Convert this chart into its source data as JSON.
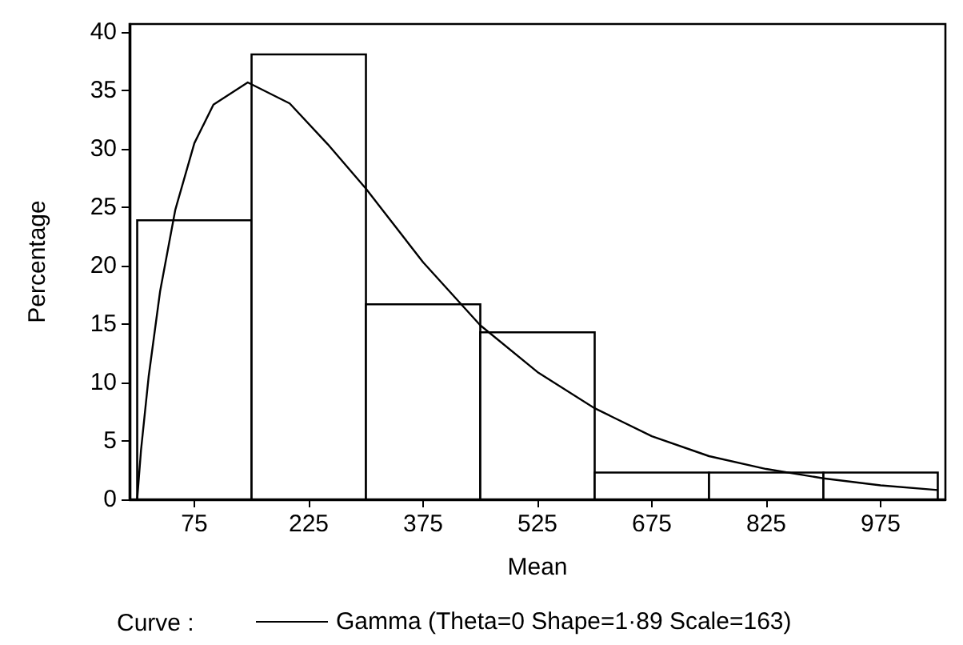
{
  "chart_data": {
    "type": "histogram",
    "xlabel": "Mean",
    "ylabel": "Percentage",
    "legend_title": "Curve :",
    "bins": [
      0,
      150,
      300,
      450,
      600,
      750,
      900,
      1050
    ],
    "values": [
      23.9,
      38.1,
      16.7,
      14.3,
      2.3,
      2.3,
      2.3
    ],
    "color": "#ffffff",
    "series": [
      {
        "type": "line",
        "name": "Gamma (Theta=0 Shape=1·89 Scale=163)",
        "color": "#000000",
        "line_style": "solid",
        "marker": "none",
        "x": [
          0,
          5,
          15,
          30,
          50,
          75,
          100,
          145,
          200,
          250,
          300,
          375,
          450,
          525,
          600,
          675,
          750,
          825,
          900,
          975,
          1050
        ],
        "values": [
          0,
          4.2,
          10.5,
          17.8,
          24.8,
          30.5,
          33.8,
          35.7,
          33.9,
          30.4,
          26.6,
          20.3,
          14.9,
          10.9,
          7.8,
          5.4,
          3.7,
          2.6,
          1.8,
          1.2,
          0.8
        ]
      }
    ],
    "xlim": [
      -10,
      1060
    ],
    "xticks": [
      75,
      225,
      375,
      525,
      675,
      825,
      975
    ],
    "ylim": [
      0,
      40.7
    ],
    "yticks": [
      0,
      5,
      10,
      15,
      20,
      25,
      30,
      35,
      40
    ],
    "grid": false,
    "legend": "bottom"
  }
}
